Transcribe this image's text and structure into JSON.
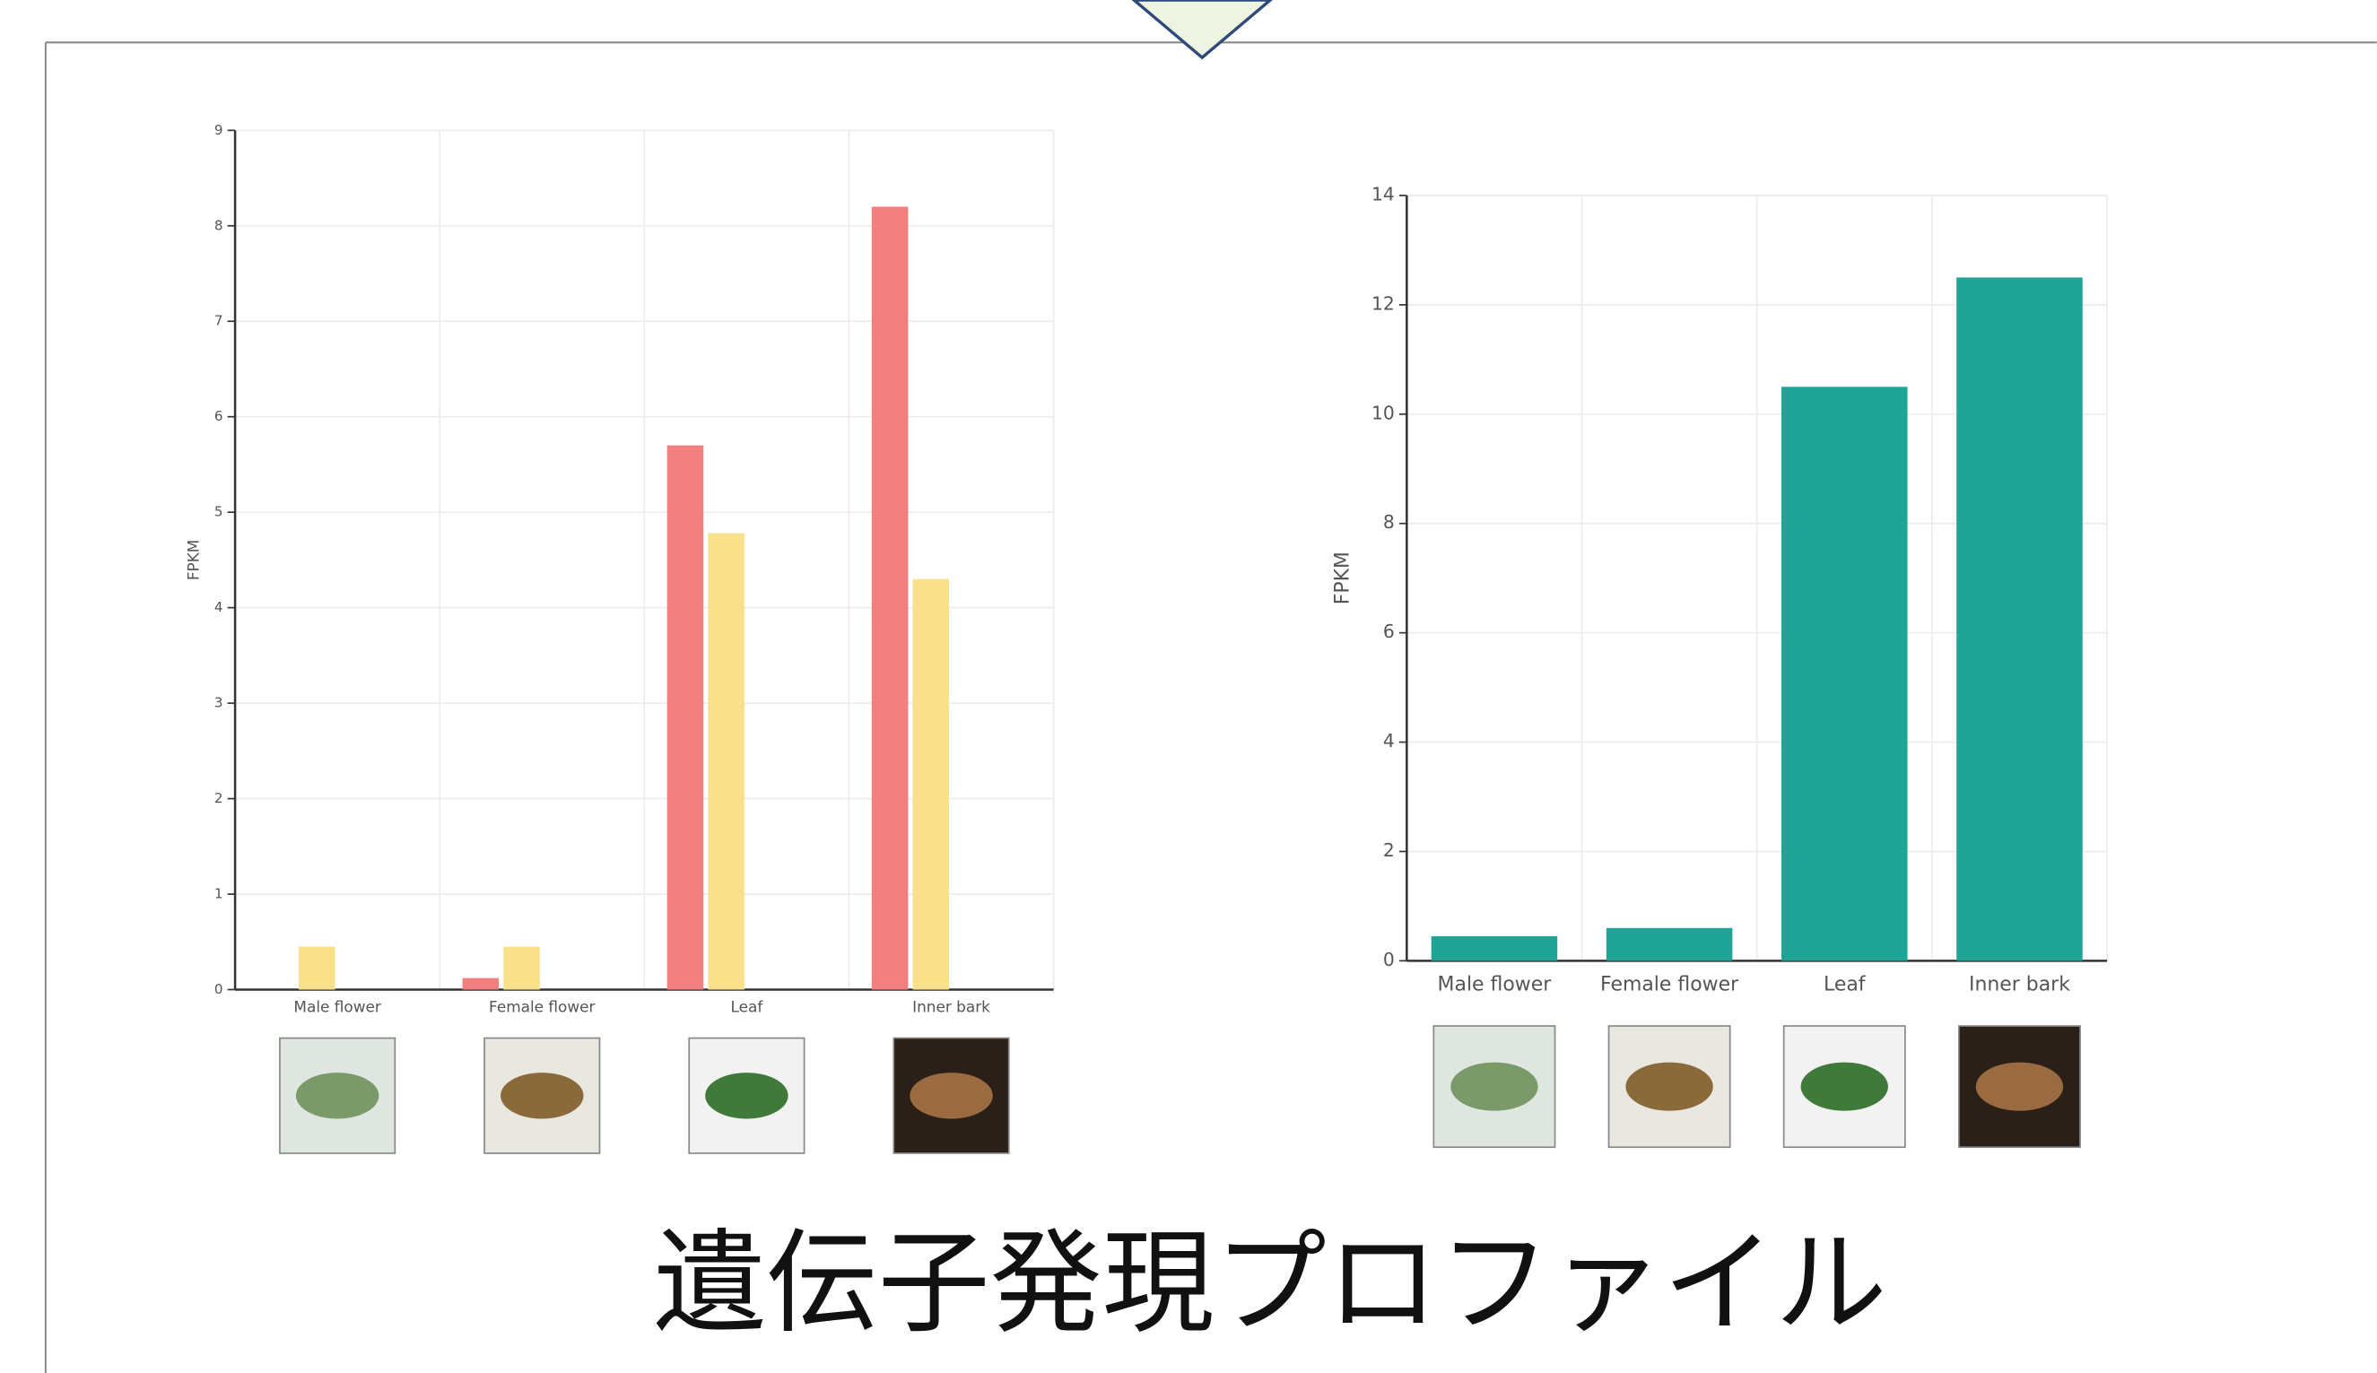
{
  "chart_data": [
    {
      "type": "bar",
      "ylabel": "FPKM",
      "categories": [
        "Male flower",
        "Female flower",
        "Leaf",
        "Inner bark"
      ],
      "series": [
        {
          "color": "#f07f7d",
          "values": [
            0,
            0.12,
            5.7,
            8.2
          ]
        },
        {
          "color": "#f9e08a",
          "values": [
            0.45,
            0.45,
            4.78,
            4.3
          ]
        }
      ],
      "ylim": [
        0,
        9
      ],
      "yticks": [
        0,
        1,
        2,
        3,
        4,
        5,
        6,
        7,
        8,
        9
      ],
      "grid": true
    },
    {
      "type": "bar",
      "ylabel": "FPKM",
      "categories": [
        "Male flower",
        "Female flower",
        "Leaf",
        "Inner bark"
      ],
      "values": [
        0.45,
        0.6,
        10.5,
        12.5
      ],
      "color": "#1fa495",
      "ylim": [
        0,
        14
      ],
      "yticks": [
        0,
        2,
        4,
        6,
        8,
        10,
        12,
        14
      ],
      "grid": true
    }
  ],
  "caption": "遺伝子発現プロファイル"
}
